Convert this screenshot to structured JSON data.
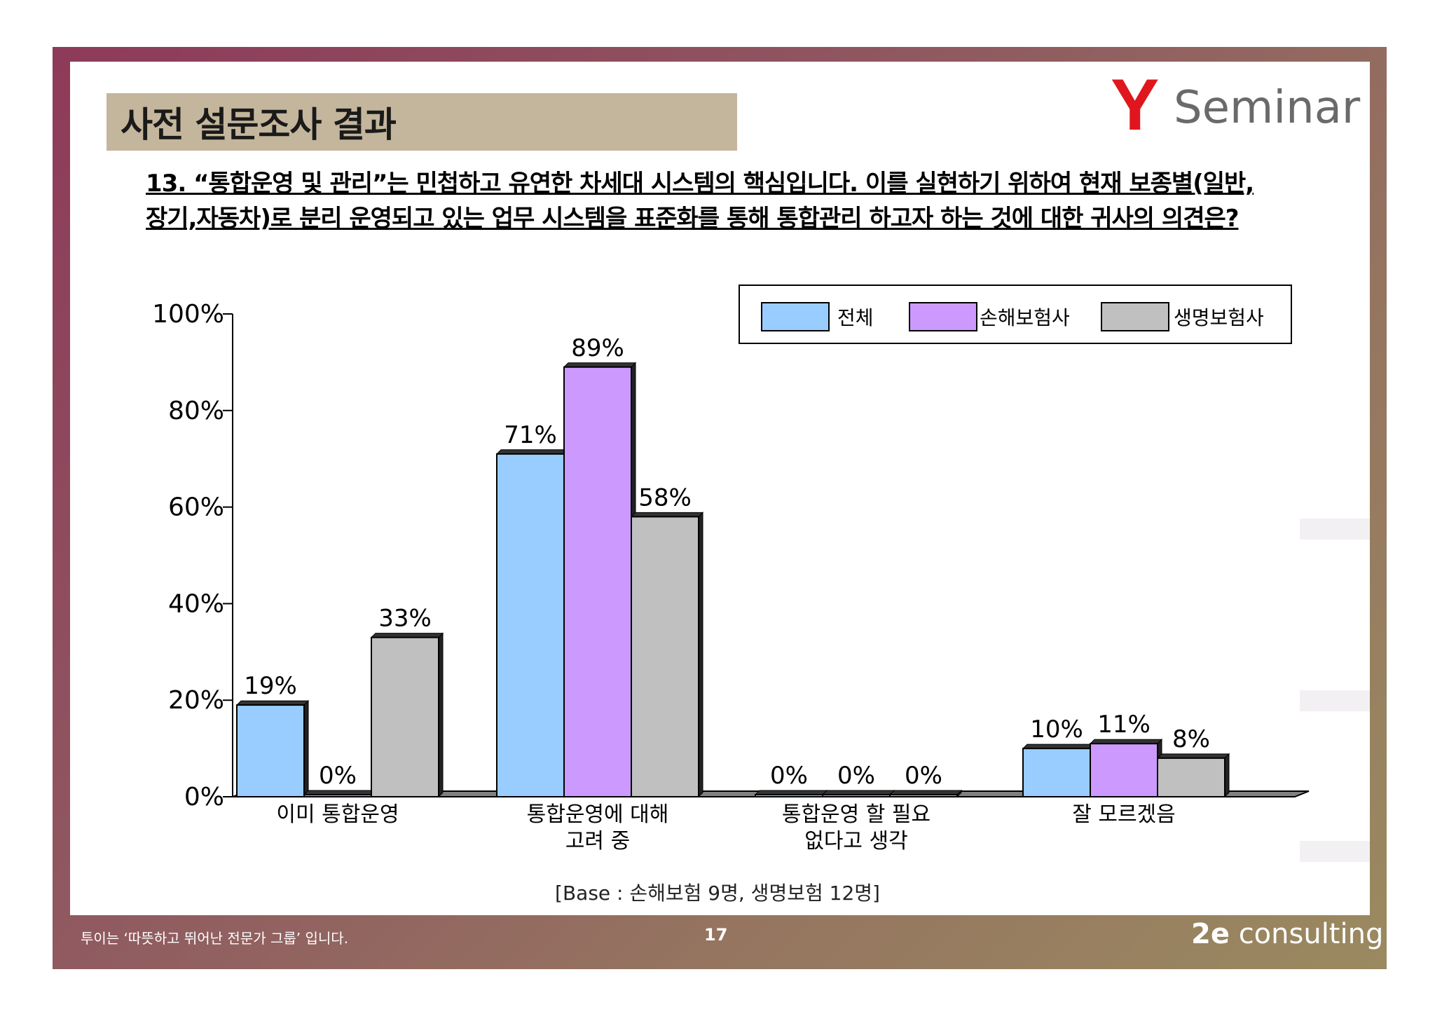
{
  "header": {
    "title": "사전 설문조사 결과",
    "logo_mark": "Y",
    "logo_text": "Seminar"
  },
  "question": {
    "line1": "13. “통합운영 및 관리”는 민첩하고 유연한 차세대 시스템의 핵심입니다. 이를 실현하기 위하여 현재 보종별(일반,",
    "line2": "장기,자동차)로 분리 운영되고 있는 업무 시스템을 표준화를 통해 통합관리 하고자 하는 것에 대한 귀사의 의견은?"
  },
  "chart_data": {
    "type": "bar",
    "categories": [
      [
        "이미 통합운영"
      ],
      [
        "통합운영에 대해",
        "고려 중"
      ],
      [
        "통합운영 할 필요",
        "없다고 생각"
      ],
      [
        "잘 모르겠음"
      ]
    ],
    "series": [
      {
        "name": "전체",
        "values": [
          19,
          71,
          0,
          10
        ],
        "color": "#99ccff"
      },
      {
        "name": "손해보험사",
        "values": [
          0,
          89,
          0,
          11
        ],
        "color": "#cc99ff"
      },
      {
        "name": "생명보험사",
        "values": [
          33,
          58,
          0,
          8
        ],
        "color": "#c0c0c0"
      }
    ],
    "value_labels": [
      [
        "19%",
        "71%",
        "0%",
        "10%"
      ],
      [
        "0%",
        "89%",
        "0%",
        "11%"
      ],
      [
        "33%",
        "58%",
        "0%",
        "8%"
      ]
    ],
    "yticks": [
      "0%",
      "20%",
      "40%",
      "60%",
      "80%",
      "100%"
    ],
    "ylim": [
      0,
      100
    ],
    "legend_position": "top-right"
  },
  "base_note": "[Base :  손해보험 9명, 생명보험  12명]",
  "footer": {
    "tagline": "투이는 ‘따뜻하고 뛰어난 전문가 그룹’ 입니다.",
    "page": "17",
    "brand": "consulting"
  }
}
